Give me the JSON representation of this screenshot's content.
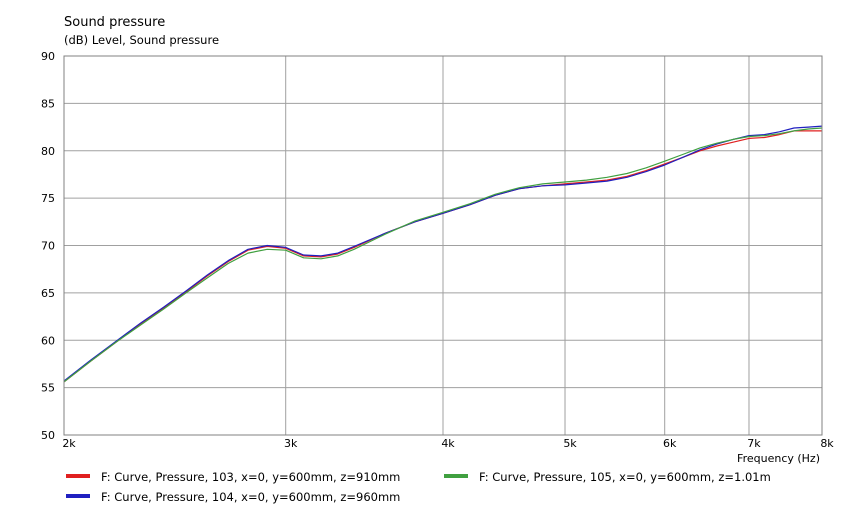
{
  "chart_data": {
    "type": "line",
    "title": "Sound pressure",
    "subtitle": "(dB)  Level, Sound pressure",
    "xlabel": "Frequency  (Hz)",
    "x_scale": "log",
    "xlim": [
      2000,
      8000
    ],
    "ylim": [
      50,
      90
    ],
    "grid": true,
    "legend_position": "bottom",
    "x_ticks": [
      {
        "value": 2000,
        "label": "2k"
      },
      {
        "value": 3000,
        "label": "3k"
      },
      {
        "value": 4000,
        "label": "4k"
      },
      {
        "value": 5000,
        "label": "5k"
      },
      {
        "value": 6000,
        "label": "6k"
      },
      {
        "value": 7000,
        "label": "7k"
      },
      {
        "value": 8000,
        "label": "8k"
      }
    ],
    "y_ticks": [
      {
        "value": 50,
        "label": "50"
      },
      {
        "value": 55,
        "label": "55"
      },
      {
        "value": 60,
        "label": "60"
      },
      {
        "value": 65,
        "label": "65"
      },
      {
        "value": 70,
        "label": "70"
      },
      {
        "value": 75,
        "label": "75"
      },
      {
        "value": 80,
        "label": "80"
      },
      {
        "value": 85,
        "label": "85"
      },
      {
        "value": 90,
        "label": "90"
      }
    ],
    "series": [
      {
        "name": "F: Curve, Pressure, 103, x=0, y=600mm, z=910mm",
        "color": "#e02020",
        "x": [
          2000,
          2100,
          2200,
          2300,
          2400,
          2500,
          2600,
          2700,
          2800,
          2900,
          3000,
          3100,
          3200,
          3300,
          3400,
          3600,
          3800,
          4000,
          4200,
          4400,
          4600,
          4800,
          5000,
          5200,
          5400,
          5600,
          5800,
          6000,
          6200,
          6400,
          6600,
          6800,
          7000,
          7200,
          7400,
          7600,
          7800,
          8000
        ],
        "y": [
          55.6,
          57.8,
          59.8,
          61.7,
          63.4,
          65.1,
          66.8,
          68.3,
          69.5,
          69.9,
          69.7,
          68.9,
          68.8,
          69.1,
          69.8,
          71.3,
          72.5,
          73.4,
          74.3,
          75.3,
          76.0,
          76.3,
          76.5,
          76.7,
          76.9,
          77.3,
          77.9,
          78.6,
          79.3,
          80.0,
          80.5,
          80.9,
          81.3,
          81.4,
          81.7,
          82.1,
          82.1,
          82.1
        ]
      },
      {
        "name": "F: Curve, Pressure, 104, x=0, y=600mm, z=960mm",
        "color": "#2020c0",
        "x": [
          2000,
          2100,
          2200,
          2300,
          2400,
          2500,
          2600,
          2700,
          2800,
          2900,
          3000,
          3100,
          3200,
          3300,
          3400,
          3600,
          3800,
          4000,
          4200,
          4400,
          4600,
          4800,
          5000,
          5200,
          5400,
          5600,
          5800,
          6000,
          6200,
          6400,
          6600,
          6800,
          7000,
          7200,
          7400,
          7600,
          7800,
          8000
        ],
        "y": [
          55.7,
          57.9,
          59.9,
          61.8,
          63.5,
          65.2,
          66.9,
          68.4,
          69.6,
          70.0,
          69.8,
          69.0,
          68.9,
          69.2,
          69.9,
          71.3,
          72.5,
          73.4,
          74.3,
          75.3,
          76.0,
          76.3,
          76.4,
          76.6,
          76.8,
          77.2,
          77.8,
          78.5,
          79.3,
          80.1,
          80.7,
          81.2,
          81.6,
          81.7,
          82.0,
          82.4,
          82.5,
          82.6
        ]
      },
      {
        "name": "F: Curve, Pressure, 105, x=0, y=600mm, z=1.01m",
        "color": "#40a040",
        "x": [
          2000,
          2100,
          2200,
          2300,
          2400,
          2500,
          2600,
          2700,
          2800,
          2900,
          3000,
          3100,
          3200,
          3300,
          3400,
          3600,
          3800,
          4000,
          4200,
          4400,
          4600,
          4800,
          5000,
          5200,
          5400,
          5600,
          5800,
          6000,
          6200,
          6400,
          6600,
          6800,
          7000,
          7200,
          7400,
          7600,
          7800,
          8000
        ],
        "y": [
          55.6,
          57.8,
          59.8,
          61.6,
          63.3,
          65.0,
          66.6,
          68.1,
          69.2,
          69.6,
          69.5,
          68.7,
          68.6,
          68.9,
          69.6,
          71.2,
          72.6,
          73.5,
          74.4,
          75.4,
          76.1,
          76.5,
          76.7,
          76.9,
          77.2,
          77.6,
          78.2,
          78.9,
          79.6,
          80.3,
          80.8,
          81.2,
          81.5,
          81.6,
          81.8,
          82.1,
          82.3,
          82.4
        ]
      }
    ]
  },
  "colors": {
    "grid": "#a0a0a0",
    "frame": "#808080",
    "background": "#ffffff"
  }
}
